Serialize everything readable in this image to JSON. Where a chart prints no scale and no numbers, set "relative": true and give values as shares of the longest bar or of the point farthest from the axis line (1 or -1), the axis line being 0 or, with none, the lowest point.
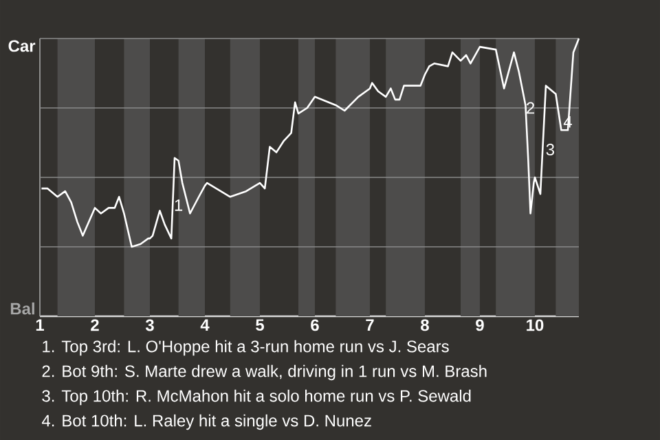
{
  "chart_data": {
    "type": "line",
    "relative": true,
    "xlim": [
      1,
      10.8
    ],
    "xticks": [
      {
        "value": 1,
        "label": "1"
      },
      {
        "value": 2,
        "label": "2"
      },
      {
        "value": 3,
        "label": "3"
      },
      {
        "value": 4,
        "label": "4"
      },
      {
        "value": 5,
        "label": "5"
      },
      {
        "value": 6,
        "label": "6"
      },
      {
        "value": 7,
        "label": "7"
      },
      {
        "value": 8,
        "label": "8"
      },
      {
        "value": 9,
        "label": "9"
      },
      {
        "value": 10,
        "label": "10"
      }
    ],
    "marker": "none",
    "line_style": "solid",
    "ref_lines": [
      {
        "axis": "y",
        "value": 0.25,
        "color": "#8a8a8a"
      },
      {
        "axis": "y",
        "value": 0.5,
        "color": "#8a8a8a"
      },
      {
        "axis": "y",
        "value": 0.75,
        "color": "#8a8a8a"
      },
      {
        "axis": "y",
        "value": 1,
        "color": "#8a8a8a"
      }
    ],
    "bands": [
      {
        "axis": "x",
        "from": 1.32,
        "to": 2,
        "color": "#4d4c4b"
      },
      {
        "axis": "x",
        "from": 2.53,
        "to": 3,
        "color": "#4d4c4b"
      },
      {
        "axis": "x",
        "from": 3.52,
        "to": 4,
        "color": "#4d4c4b"
      },
      {
        "axis": "x",
        "from": 4.46,
        "to": 5,
        "color": "#4d4c4b"
      },
      {
        "axis": "x",
        "from": 5.7,
        "to": 6,
        "color": "#4d4c4b"
      },
      {
        "axis": "x",
        "from": 6.38,
        "to": 7,
        "color": "#4d4c4b"
      },
      {
        "axis": "x",
        "from": 7.29,
        "to": 8,
        "color": "#4d4c4b"
      },
      {
        "axis": "x",
        "from": 8.65,
        "to": 9,
        "color": "#4d4c4b"
      },
      {
        "axis": "x",
        "from": 9.29,
        "to": 10,
        "color": "#4d4c4b"
      },
      {
        "axis": "x",
        "from": 10.38,
        "to": 10.8,
        "color": "#4d4c4b"
      }
    ],
    "series": [
      {
        "color": "#ffffff",
        "x": [
          1.03,
          1.14,
          1.32,
          1.46,
          1.57,
          1.68,
          1.78,
          2,
          2.11,
          2.25,
          2.36,
          2.44,
          2.5,
          2.53,
          2.67,
          2.83,
          2.97,
          3,
          3.05,
          3.18,
          3.27,
          3.39,
          3.45,
          3.52,
          3.59,
          3.73,
          3.89,
          4,
          4.04,
          4.46,
          4.75,
          5,
          5.09,
          5.18,
          5.3,
          5.43,
          5.57,
          5.64,
          5.7,
          5.86,
          6,
          6.38,
          6.54,
          6.79,
          7,
          7.04,
          7.15,
          7.29,
          7.38,
          7.46,
          7.54,
          7.62,
          7.92,
          8,
          8.08,
          8.17,
          8.42,
          8.5,
          8.65,
          8.75,
          8.83,
          9,
          9.29,
          9.44,
          9.62,
          9.71,
          9.83,
          9.88,
          9.92,
          9.98,
          10,
          10.1,
          10.2,
          10.38,
          10.48,
          10.6,
          10.7,
          10.8
        ],
        "values": [
          0.46,
          0.46,
          0.43,
          0.45,
          0.41,
          0.34,
          0.29,
          0.39,
          0.37,
          0.39,
          0.39,
          0.43,
          0.39,
          0.37,
          0.25,
          0.26,
          0.28,
          0.28,
          0.29,
          0.38,
          0.33,
          0.28,
          0.57,
          0.56,
          0.48,
          0.37,
          0.43,
          0.47,
          0.48,
          0.43,
          0.45,
          0.48,
          0.46,
          0.61,
          0.59,
          0.63,
          0.66,
          0.77,
          0.73,
          0.75,
          0.79,
          0.76,
          0.74,
          0.79,
          0.82,
          0.84,
          0.81,
          0.79,
          0.82,
          0.78,
          0.78,
          0.83,
          0.83,
          0.87,
          0.9,
          0.91,
          0.9,
          0.95,
          0.92,
          0.94,
          0.91,
          0.97,
          0.96,
          0.82,
          0.95,
          0.88,
          0.76,
          0.56,
          0.37,
          0.48,
          0.5,
          0.44,
          0.83,
          0.8,
          0.67,
          0.67,
          0.95,
          1
        ]
      }
    ],
    "annotations": [
      "Car",
      "Bal",
      {
        "text": "1",
        "x": 3.52,
        "y": 0.4
      },
      {
        "text": "2",
        "x": 9.92,
        "y": 0.75
      },
      {
        "text": "3",
        "x": 10.28,
        "y": 0.6
      },
      {
        "text": "4",
        "x": 10.6,
        "y": 0.7
      },
      "1. Top 3rd: L. O'Hoppe hit a 3-run home run vs J. Sears",
      "2. Bot 9th: S. Marte drew a walk, driving in 1 run vs M. Brash",
      "3. Top 10th: R. McMahon hit a solo home run vs P. Sewald",
      "4. Bot 10th: L. Raley hit a single vs D. Nunez"
    ]
  }
}
